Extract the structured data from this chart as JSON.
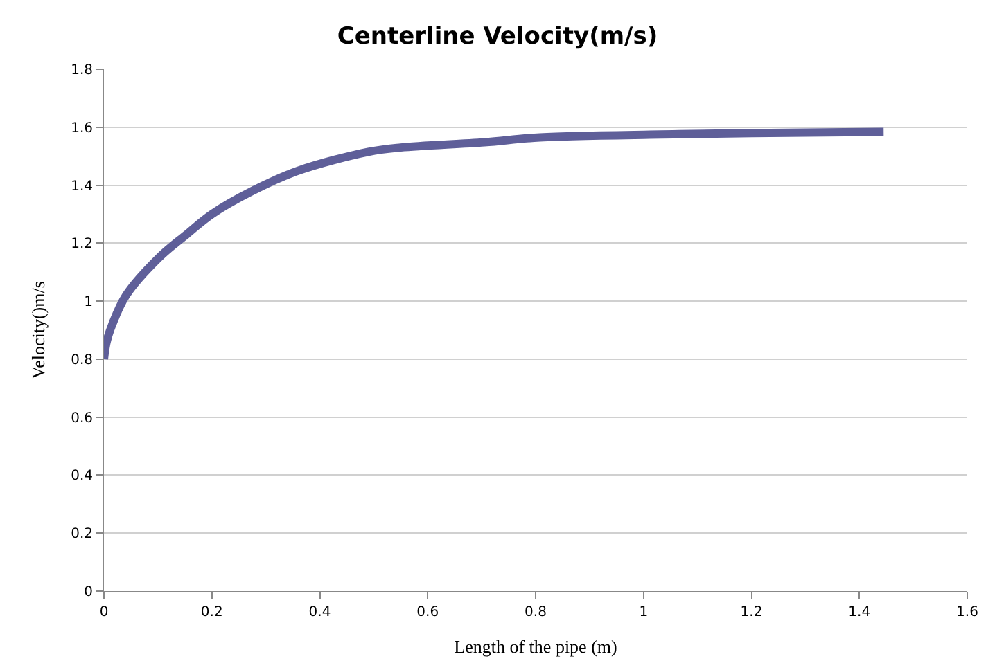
{
  "chart_data": {
    "type": "line",
    "title": "Centerline Velocity(m/s)",
    "xlabel": "Length of the pipe (m)",
    "ylabel": "Velocity()m/s",
    "x": [
      0,
      0.005,
      0.0155,
      0.041,
      0.102,
      0.153,
      0.2,
      0.275,
      0.36,
      0.49,
      0.55,
      0.705,
      0.808,
      1.066,
      1.2,
      1.445
    ],
    "series": [
      {
        "color": "#5f5f99",
        "values": [
          0.8,
          0.86,
          0.92,
          1.02,
          1.15,
          1.23,
          1.3,
          1.38,
          1.45,
          1.515,
          1.53,
          1.548,
          1.565,
          1.576,
          1.58,
          1.584
        ]
      }
    ],
    "xlim": [
      0,
      1.6
    ],
    "xticks": [
      0,
      0.2,
      0.4,
      0.6,
      0.8,
      1,
      1.2,
      1.4,
      1.6
    ],
    "ylim": [
      0,
      1.8
    ],
    "yticks": [
      0,
      0.2,
      0.4,
      0.6,
      0.8,
      1,
      1.2,
      1.4,
      1.6,
      1.8
    ],
    "grid": "y",
    "marker": "none",
    "line_style": "solid"
  }
}
